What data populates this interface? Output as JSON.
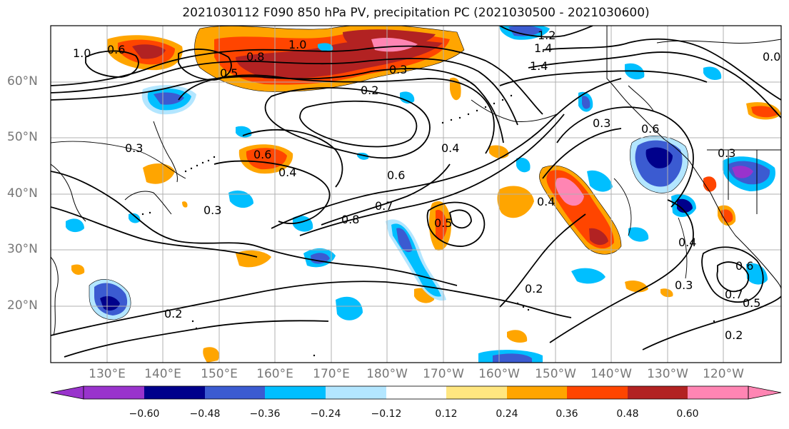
{
  "title": "2021030112 F090 850 hPa PV, precipitation PC (2021030500 - 2021030600)",
  "map": {
    "lat_labels": [
      "60°N",
      "50°N",
      "40°N",
      "30°N",
      "20°N"
    ],
    "lon_labels": [
      "130°E",
      "140°E",
      "150°E",
      "160°E",
      "170°E",
      "180°W",
      "170°W",
      "160°W",
      "150°W",
      "140°W",
      "130°W",
      "120°W"
    ],
    "contour_labels": [
      "1.0",
      "0.6",
      "1.0",
      "1.2",
      "1.4",
      "0.8",
      "0.5",
      "0.3",
      "0.2",
      "1.4",
      "0.3",
      "0.6",
      "0.3",
      "0.6",
      "0.4",
      "0.4",
      "0.6",
      "0.8",
      "0.7",
      "0.5",
      "0.4",
      "0.2",
      "0.3",
      "0.4",
      "0.6",
      "0.7",
      "0.5",
      "0.2",
      "0.2",
      "0.3",
      "0.3",
      "0.0"
    ],
    "land_color": "#000000",
    "grid_color": "#b0b0b0",
    "contour_color": "#000000"
  },
  "colorbar": {
    "ticks": [
      "−0.60",
      "−0.48",
      "−0.36",
      "−0.24",
      "−0.12",
      "0.12",
      "0.24",
      "0.36",
      "0.48",
      "0.60"
    ],
    "colors": [
      "#9933cc",
      "#00008b",
      "#3b5bd1",
      "#00bfff",
      "#b3e6ff",
      "#ffffff",
      "#ffe680",
      "#ffa500",
      "#ff4500",
      "#b22222",
      "#ff85b3",
      "#ff85b3"
    ],
    "extend": "both"
  }
}
